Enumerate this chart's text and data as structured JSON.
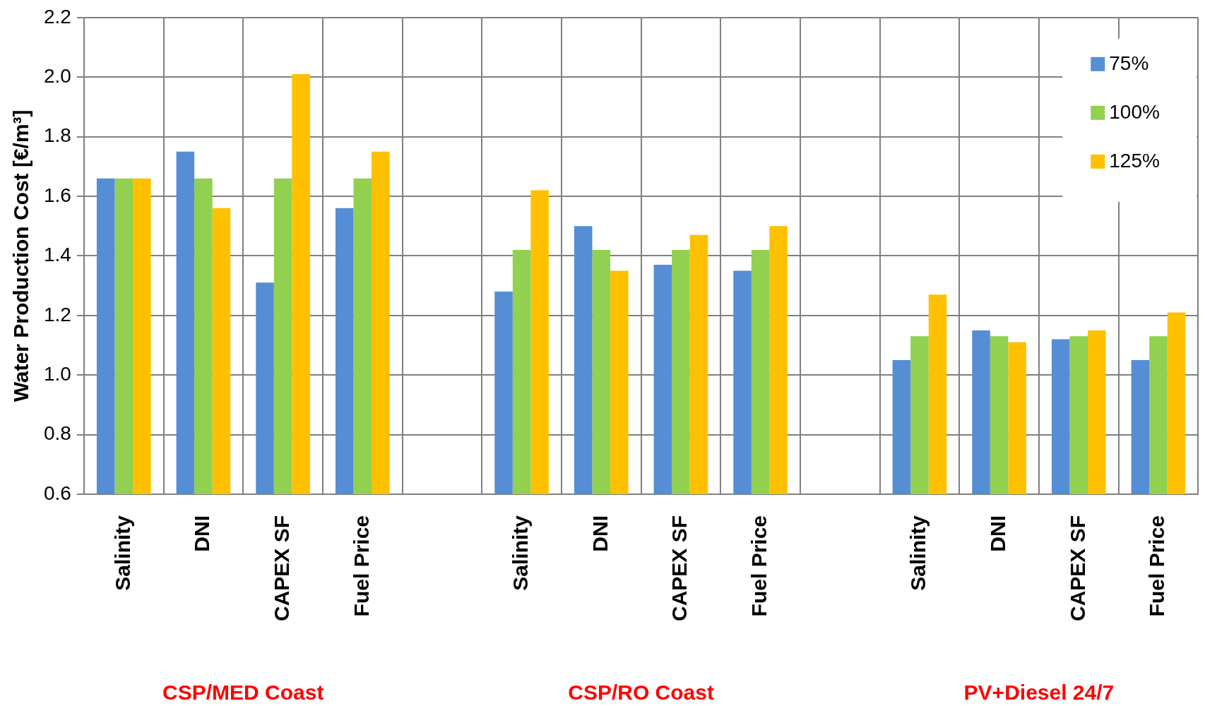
{
  "chart_data": {
    "type": "bar",
    "ylabel": "Water Production Cost [€/m³]",
    "categories": [
      "Salinity",
      "DNI",
      "CAPEX SF",
      "Fuel Price",
      null,
      "Salinity",
      "DNI",
      "CAPEX SF",
      "Fuel Price",
      null,
      "Salinity",
      "DNI",
      "CAPEX SF",
      "Fuel Price"
    ],
    "series": [
      {
        "name": "75%",
        "color": "#558ed5",
        "values": [
          1.66,
          1.75,
          1.31,
          1.56,
          null,
          1.28,
          1.5,
          1.37,
          1.35,
          null,
          1.05,
          1.15,
          1.12,
          1.05
        ]
      },
      {
        "name": "100%",
        "color": "#92d050",
        "values": [
          1.66,
          1.66,
          1.66,
          1.66,
          null,
          1.42,
          1.42,
          1.42,
          1.42,
          null,
          1.13,
          1.13,
          1.13,
          1.13
        ]
      },
      {
        "name": "125%",
        "color": "#ffc000",
        "values": [
          1.66,
          1.56,
          2.01,
          1.75,
          null,
          1.62,
          1.35,
          1.47,
          1.5,
          null,
          1.27,
          1.11,
          1.15,
          1.21
        ]
      }
    ],
    "ylim": [
      0.6,
      2.2
    ],
    "yticks": [
      {
        "value": 0.6,
        "label": "0.6"
      },
      {
        "value": 0.8,
        "label": "0.8"
      },
      {
        "value": 1.0,
        "label": "1.0"
      },
      {
        "value": 1.2,
        "label": "1.2"
      },
      {
        "value": 1.4,
        "label": "1.4"
      },
      {
        "value": 1.6,
        "label": "1.6"
      },
      {
        "value": 1.8,
        "label": "1.8"
      },
      {
        "value": 2.0,
        "label": "2.0"
      },
      {
        "value": 2.2,
        "label": "2.2"
      }
    ],
    "grid": true,
    "legend": "top right",
    "annotations": [
      "CSP/MED Coast",
      "CSP/RO Coast",
      "PV+Diesel 24/7"
    ]
  }
}
